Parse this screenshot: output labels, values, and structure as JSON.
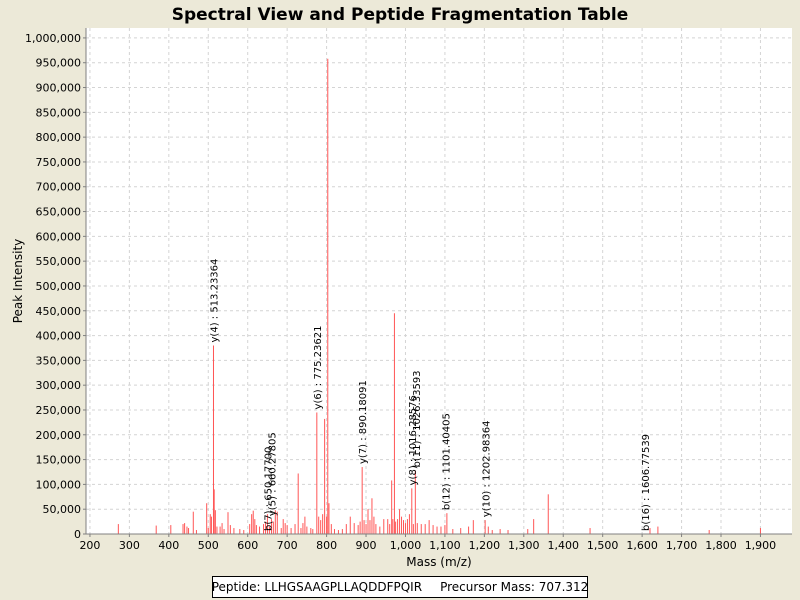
{
  "chart_data": {
    "type": "bar",
    "title": "Spectral View and Peptide Fragmentation Table",
    "xlabel": "Mass (m/z)",
    "ylabel": "Peak Intensity",
    "xlim": [
      190,
      1980
    ],
    "ylim": [
      0,
      1020000
    ],
    "x_ticks": [
      200,
      300,
      400,
      500,
      600,
      700,
      800,
      900,
      1000,
      1100,
      1200,
      1300,
      1400,
      1500,
      1600,
      1700,
      1800,
      1900
    ],
    "x_tick_labels": [
      "200",
      "300",
      "400",
      "500",
      "600",
      "700",
      "800",
      "900",
      "1,000",
      "1,100",
      "1,200",
      "1,300",
      "1,400",
      "1,500",
      "1,600",
      "1,700",
      "1,800",
      "1,900"
    ],
    "y_ticks": [
      0,
      50000,
      100000,
      150000,
      200000,
      250000,
      300000,
      350000,
      400000,
      450000,
      500000,
      550000,
      600000,
      650000,
      700000,
      750000,
      800000,
      850000,
      900000,
      950000,
      1000000
    ],
    "y_tick_labels": [
      "0",
      "50,000",
      "100,000",
      "150,000",
      "200,000",
      "250,000",
      "300,000",
      "350,000",
      "400,000",
      "450,000",
      "500,000",
      "550,000",
      "600,000",
      "650,000",
      "700,000",
      "750,000",
      "800,000",
      "850,000",
      "900,000",
      "950,000",
      "1,000,000"
    ],
    "grid": true,
    "colors": {
      "peak": "#ff5555",
      "grid": "#d4d4d4",
      "plot_bg": "#ffffff",
      "axis": "#808080",
      "label": "#000000"
    },
    "peaks": [
      [
        272,
        20000
      ],
      [
        368,
        17000
      ],
      [
        405,
        18000
      ],
      [
        436,
        20000
      ],
      [
        440,
        22000
      ],
      [
        446,
        15000
      ],
      [
        450,
        12000
      ],
      [
        462,
        45000
      ],
      [
        470,
        8000
      ],
      [
        496,
        62000
      ],
      [
        500,
        12000
      ],
      [
        505,
        40000
      ],
      [
        508,
        35000
      ],
      [
        513.23364,
        380000
      ],
      [
        515,
        90000
      ],
      [
        518,
        48000
      ],
      [
        522,
        15000
      ],
      [
        530,
        15000
      ],
      [
        535,
        22000
      ],
      [
        540,
        10000
      ],
      [
        550,
        44000
      ],
      [
        556,
        18000
      ],
      [
        565,
        12000
      ],
      [
        580,
        10000
      ],
      [
        590,
        8000
      ],
      [
        605,
        20000
      ],
      [
        610,
        40000
      ],
      [
        614,
        47000
      ],
      [
        618,
        30000
      ],
      [
        622,
        18000
      ],
      [
        630,
        15000
      ],
      [
        640,
        20000
      ],
      [
        645,
        25000
      ],
      [
        650,
        40000
      ],
      [
        655,
        15000
      ],
      [
        660.27805,
        30000
      ],
      [
        665,
        25000
      ],
      [
        670,
        48000
      ],
      [
        675,
        45000
      ],
      [
        685,
        12000
      ],
      [
        690,
        30000
      ],
      [
        695,
        22000
      ],
      [
        700,
        18000
      ],
      [
        710,
        12000
      ],
      [
        720,
        20000
      ],
      [
        728,
        122000
      ],
      [
        735,
        12000
      ],
      [
        740,
        22000
      ],
      [
        745,
        35000
      ],
      [
        750,
        15000
      ],
      [
        760,
        12000
      ],
      [
        765,
        10000
      ],
      [
        775.23621,
        245000
      ],
      [
        780,
        35000
      ],
      [
        785,
        28000
      ],
      [
        790,
        40000
      ],
      [
        795,
        232000
      ],
      [
        800,
        35000
      ],
      [
        803,
        958000
      ],
      [
        806,
        62000
      ],
      [
        812,
        20000
      ],
      [
        820,
        10000
      ],
      [
        830,
        8000
      ],
      [
        840,
        10000
      ],
      [
        850,
        20000
      ],
      [
        860,
        35000
      ],
      [
        870,
        22000
      ],
      [
        880,
        18000
      ],
      [
        885,
        25000
      ],
      [
        890.18091,
        135000
      ],
      [
        895,
        28000
      ],
      [
        900,
        20000
      ],
      [
        905,
        50000
      ],
      [
        910,
        28000
      ],
      [
        915,
        72000
      ],
      [
        920,
        35000
      ],
      [
        925,
        20000
      ],
      [
        935,
        15000
      ],
      [
        945,
        30000
      ],
      [
        955,
        30000
      ],
      [
        960,
        20000
      ],
      [
        965,
        108000
      ],
      [
        968,
        30000
      ],
      [
        972,
        445000
      ],
      [
        975,
        25000
      ],
      [
        980,
        30000
      ],
      [
        985,
        50000
      ],
      [
        990,
        35000
      ],
      [
        995,
        28000
      ],
      [
        1000,
        22000
      ],
      [
        1005,
        30000
      ],
      [
        1010,
        40000
      ],
      [
        1016,
        92000
      ],
      [
        1020,
        20000
      ],
      [
        1025,
        128000
      ],
      [
        1030,
        22000
      ],
      [
        1040,
        20000
      ],
      [
        1050,
        20000
      ],
      [
        1060,
        28000
      ],
      [
        1070,
        18000
      ],
      [
        1080,
        15000
      ],
      [
        1090,
        15000
      ],
      [
        1100,
        18000
      ],
      [
        1105,
        42000
      ],
      [
        1120,
        10000
      ],
      [
        1140,
        12000
      ],
      [
        1160,
        15000
      ],
      [
        1172,
        28000
      ],
      [
        1202,
        28000
      ],
      [
        1210,
        15000
      ],
      [
        1220,
        8000
      ],
      [
        1240,
        10000
      ],
      [
        1260,
        8000
      ],
      [
        1310,
        10000
      ],
      [
        1325,
        30000
      ],
      [
        1362,
        80000
      ],
      [
        1468,
        12000
      ],
      [
        1620,
        12000
      ],
      [
        1640,
        15000
      ],
      [
        1770,
        8000
      ],
      [
        1900,
        12000
      ]
    ],
    "annotations": [
      {
        "label": "y(4) : 513.23364",
        "x": 513.23364,
        "y": 380000
      },
      {
        "label": "b(7) : 650.17700",
        "x": 650.177,
        "y": 0
      },
      {
        "label": "y(5) : 660.27805",
        "x": 660.27805,
        "y": 30000
      },
      {
        "label": "y(6) : 775.23621",
        "x": 775.23621,
        "y": 245000
      },
      {
        "label": "y(7) : 890.18091",
        "x": 890.18091,
        "y": 135000
      },
      {
        "label": "y(8) : 1016.28576",
        "x": 1016.28576,
        "y": 92000
      },
      {
        "label": "b(11) : 1026.33593",
        "x": 1026.33593,
        "y": 128000
      },
      {
        "label": "b(12) : 1101.40405",
        "x": 1101.40405,
        "y": 42000
      },
      {
        "label": "y(10) : 1202.98364",
        "x": 1202.98364,
        "y": 28000
      },
      {
        "label": "b(16) : 1606.77539",
        "x": 1606.77539,
        "y": 0
      }
    ]
  },
  "footer": {
    "peptide": "Peptide: LLHGSAAGPLLAQDDFPQIR",
    "precursor": "Precursor Mass: 707.312"
  }
}
